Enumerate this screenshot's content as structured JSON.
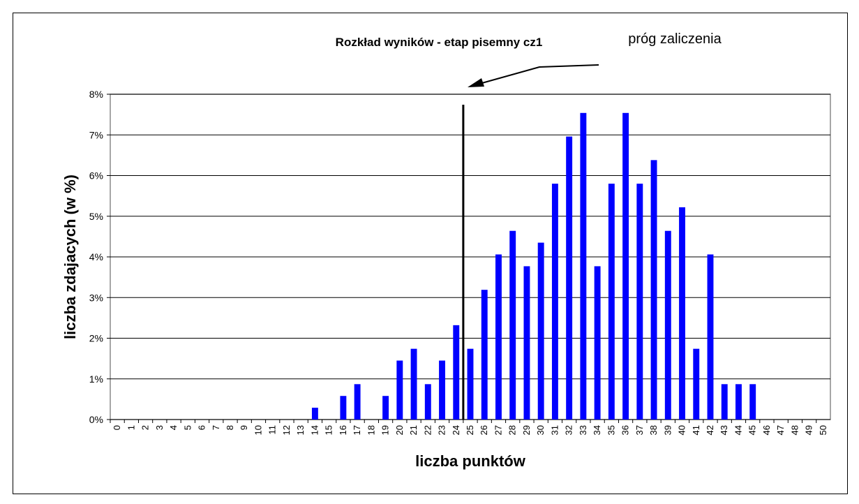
{
  "chart_data": {
    "type": "bar",
    "title": "Rozkład wyników - etap pisemny cz1",
    "annotation": "próg zaliczenia",
    "x_label": "liczba punktów",
    "y_label": "liczba zdajacych (w %)",
    "categories": [
      "0",
      "1",
      "2",
      "3",
      "4",
      "5",
      "6",
      "7",
      "8",
      "9",
      "10",
      "11",
      "12",
      "13",
      "14",
      "15",
      "16",
      "17",
      "18",
      "19",
      "20",
      "21",
      "22",
      "23",
      "24",
      "25",
      "26",
      "27",
      "28",
      "29",
      "30",
      "31",
      "32",
      "33",
      "34",
      "35",
      "36",
      "37",
      "38",
      "39",
      "40",
      "41",
      "42",
      "43",
      "44",
      "45",
      "46",
      "47",
      "48",
      "49",
      "50"
    ],
    "values": [
      0,
      0,
      0,
      0,
      0,
      0,
      0,
      0,
      0,
      0,
      0,
      0,
      0,
      0,
      0.29,
      0,
      0.58,
      0.87,
      0,
      0.58,
      1.45,
      1.74,
      0.87,
      1.45,
      2.32,
      1.74,
      3.19,
      4.06,
      4.64,
      3.77,
      4.35,
      5.8,
      6.96,
      7.54,
      3.77,
      5.8,
      7.54,
      5.8,
      6.38,
      4.64,
      5.22,
      1.74,
      4.06,
      0.87,
      0.87,
      0.87,
      0,
      0,
      0,
      0,
      0
    ],
    "color": "#0000ff",
    "threshold": 24.5,
    "ylim": [
      0,
      8
    ],
    "yticks": [
      {
        "value": 0,
        "label": "0%"
      },
      {
        "value": 1,
        "label": "1%"
      },
      {
        "value": 2,
        "label": "2%"
      },
      {
        "value": 3,
        "label": "3%"
      },
      {
        "value": 4,
        "label": "4%"
      },
      {
        "value": 5,
        "label": "5%"
      },
      {
        "value": 6,
        "label": "6%"
      },
      {
        "value": 7,
        "label": "7%"
      },
      {
        "value": 8,
        "label": "8%"
      }
    ],
    "grid": true
  }
}
